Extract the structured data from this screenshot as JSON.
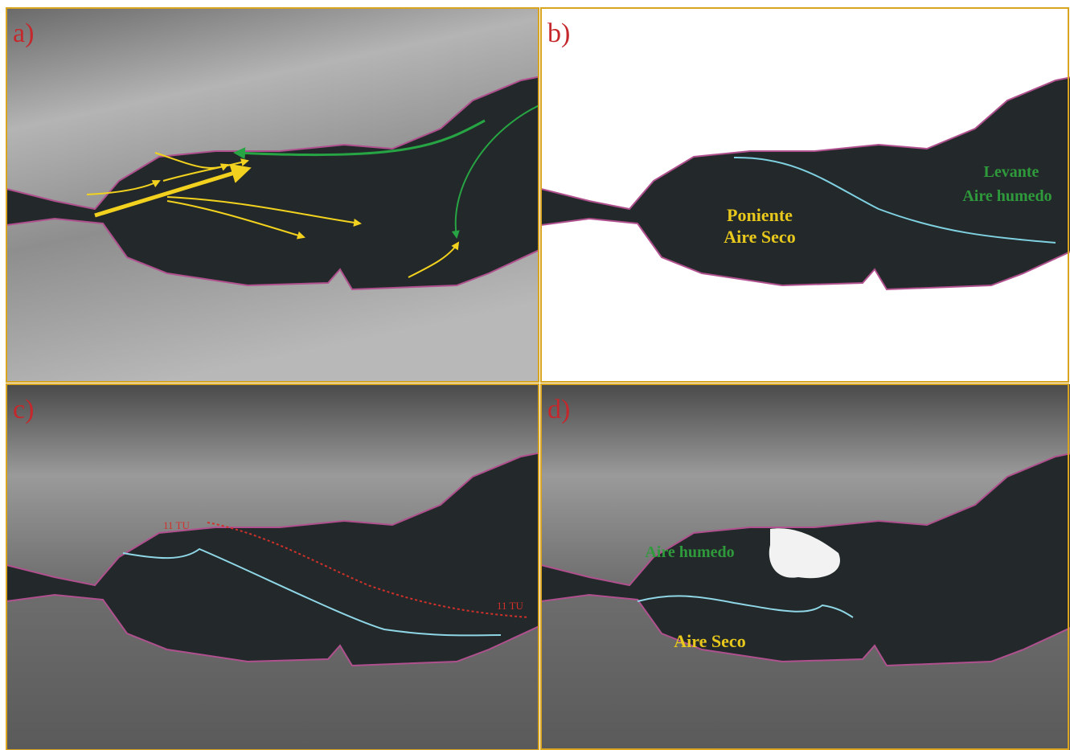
{
  "panels": [
    {
      "label": "a)"
    },
    {
      "label": "b)",
      "annotations": [
        "Poniente",
        "Aire Seco",
        "Levante",
        "Aire humedo"
      ]
    },
    {
      "label": "c)",
      "annotations": [
        "11 TU",
        "11 TU"
      ]
    },
    {
      "label": "d)",
      "annotations": [
        "Aire humedo",
        "Aire Seco"
      ]
    }
  ]
}
